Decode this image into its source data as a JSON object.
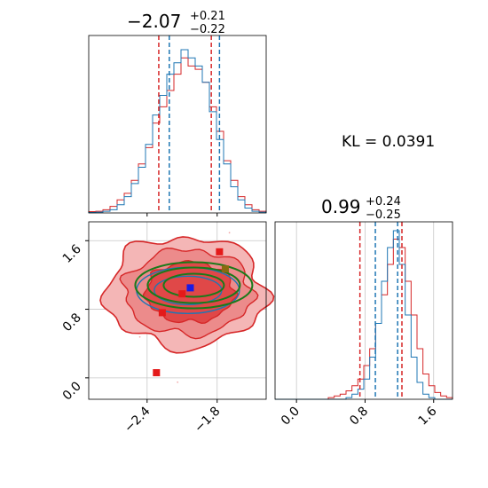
{
  "chart_data": {
    "type": "corner",
    "kl_label": "KL = 0.0391",
    "params": [
      {
        "median": "−2.07",
        "plus": "+0.21",
        "minus": "−0.22",
        "range": [
          -2.9,
          -1.38
        ],
        "ticks": [
          -2.4,
          -1.8
        ],
        "tick_labels": [
          "−2.4",
          "−1.8"
        ]
      },
      {
        "median": "0.99",
        "plus": "+0.24",
        "minus": "−0.25",
        "range": [
          -0.25,
          1.82
        ],
        "ticks": [
          0.0,
          0.8,
          1.6
        ],
        "tick_labels": [
          "0.0",
          "0.8",
          "1.6"
        ]
      }
    ],
    "series": [
      {
        "color": "#d62728"
      },
      {
        "color": "#1f77b4"
      },
      {
        "color": "#1a7a1a"
      }
    ],
    "quantile_lines": {
      "p1": {
        "red": [
          -2.3,
          -1.85
        ],
        "blue": [
          -2.21,
          -1.78
        ]
      },
      "p2": {
        "red": [
          0.74,
          1.23
        ],
        "blue": [
          0.92,
          1.18
        ]
      }
    },
    "hist_p1": {
      "red": [
        0.008,
        0.01,
        0.02,
        0.04,
        0.08,
        0.12,
        0.2,
        0.3,
        0.4,
        0.55,
        0.65,
        0.75,
        0.85,
        0.95,
        0.9,
        0.88,
        0.8,
        0.65,
        0.5,
        0.32,
        0.2,
        0.1,
        0.05,
        0.02,
        0.01
      ],
      "blue": [
        0.003,
        0.005,
        0.01,
        0.02,
        0.05,
        0.1,
        0.18,
        0.28,
        0.42,
        0.6,
        0.72,
        0.85,
        0.92,
        1.0,
        0.95,
        0.9,
        0.8,
        0.62,
        0.45,
        0.3,
        0.16,
        0.08,
        0.03,
        0.01,
        0.005
      ]
    },
    "hist_p2": {
      "red": [
        0.0,
        0.0,
        0.0,
        0.0,
        0.0,
        0.0,
        0.0,
        0.0,
        0.0,
        0.01,
        0.02,
        0.03,
        0.05,
        0.08,
        0.12,
        0.2,
        0.3,
        0.45,
        0.62,
        0.8,
        0.95,
        0.9,
        0.7,
        0.5,
        0.3,
        0.15,
        0.08,
        0.04,
        0.02,
        0.01
      ],
      "blue": [
        0.0,
        0.0,
        0.0,
        0.0,
        0.0,
        0.0,
        0.0,
        0.0,
        0.0,
        0.0,
        0.0,
        0.0,
        0.01,
        0.03,
        0.06,
        0.12,
        0.25,
        0.45,
        0.7,
        0.9,
        1.0,
        0.8,
        0.5,
        0.25,
        0.1,
        0.03,
        0.01,
        0.0,
        0.0,
        0.0
      ]
    },
    "scatter_2d": {
      "red_centre": [
        -2.07,
        1.0
      ],
      "blue_centre": [
        -2.05,
        1.02
      ],
      "green_centre": [
        -2.0,
        1.08
      ],
      "red_markers": [
        [
          -1.78,
          1.47
        ],
        [
          -2.1,
          0.98
        ],
        [
          -2.27,
          0.76
        ],
        [
          -2.32,
          0.06
        ]
      ],
      "blue_markers": [
        [
          -2.03,
          1.05
        ]
      ],
      "olive_markers": [
        [
          -1.73,
          1.27
        ]
      ]
    }
  }
}
